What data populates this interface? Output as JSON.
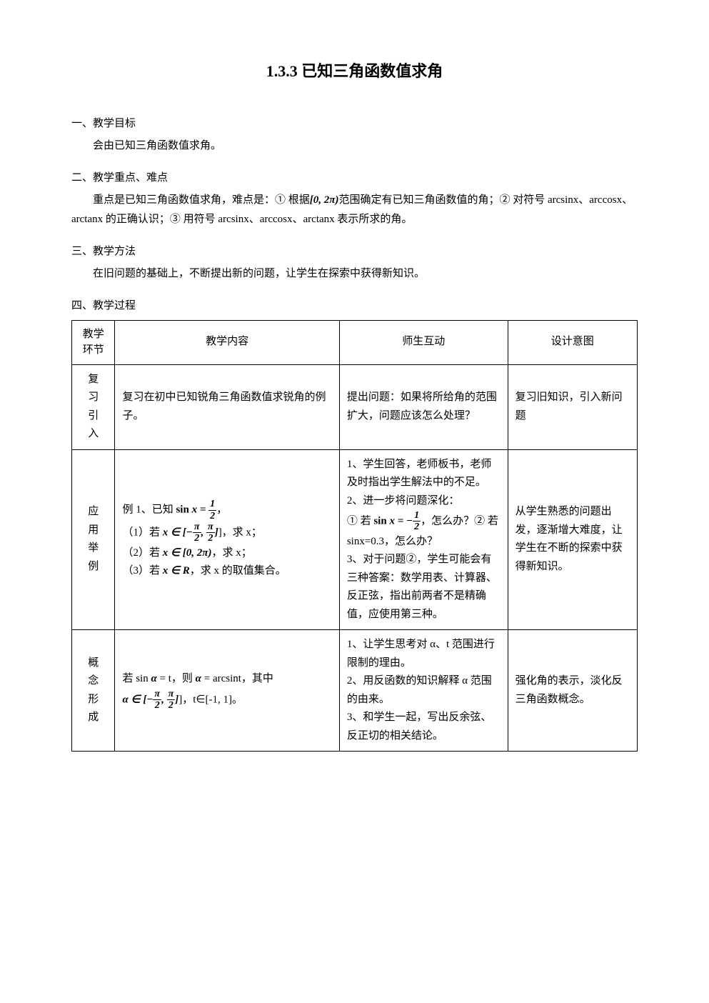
{
  "title": "1.3.3 已知三角函数值求角",
  "sections": {
    "objective": {
      "heading": "一、教学目标",
      "body": "会由已知三角函数值求角。"
    },
    "keypoints": {
      "heading": "二、教学重点、难点",
      "body_prefix": "重点是已知三角函数值求角，难点是：① 根据",
      "body_interval": "[0, 2π)",
      "body_mid": "范围确定有已知三角函数值的角；② 对符号 arcsinx、arccosx、arctanx 的正确认识；③ 用符号 arcsinx、arccosx、arctanx 表示所求的角。"
    },
    "method": {
      "heading": "三、教学方法",
      "body": "在旧问题的基础上，不断提出新的问题，让学生在探索中获得新知识。"
    },
    "process": {
      "heading": "四、教学过程"
    }
  },
  "table": {
    "headers": {
      "phase": "教学环节",
      "content": "教学内容",
      "interact": "师生互动",
      "intent": "设计意图"
    },
    "rows": [
      {
        "phase": [
          "复",
          "习",
          "引",
          "入"
        ],
        "content": "复习在初中已知锐角三角函数值求锐角的例子。",
        "interact": "提出问题：如果将所给角的范围扩大，问题应该怎么处理？",
        "intent": "复习旧知识，引入新问题"
      },
      {
        "phase": [
          "应",
          "用",
          "举",
          "例"
        ],
        "content_lines": {
          "l1_pre": "例 1、已知",
          "l1_sin": "sin x =",
          "l1_num": "1",
          "l1_den": "2",
          "l1_post": "，",
          "l2_pre": "（1）若",
          "l2_x": "x ∈ [−",
          "l2_num1": "π",
          "l2_den1": "2",
          "l2_mid": ", ",
          "l2_num2": "π",
          "l2_den2": "2",
          "l2_post": "]，求 x；",
          "l3_pre": "（2）若",
          "l3_x": "x ∈ [0, 2π)",
          "l3_post": "，求 x；",
          "l4_pre": "（3）若",
          "l4_x": "x ∈ R",
          "l4_post": "，求 x 的取值集合。"
        },
        "interact_lines": {
          "p1": "1、学生回答，老师板书，老师及时指出学生解法中的不足。",
          "p2": "2、进一步将问题深化：",
          "p2a_pre": "① 若",
          "p2a_sin": "sin x = −",
          "p2a_num": "1",
          "p2a_den": "2",
          "p2a_post": "，怎么办？② 若 sinx=0.3，怎么办？",
          "p3": "3、对于问题②，学生可能会有三种答案：数学用表、计算器、反正弦，指出前两者不是精确值，应使用第三种。"
        },
        "intent": "从学生熟悉的问题出发，逐渐增大难度，让学生在不断的探索中获得新知识。"
      },
      {
        "phase": [
          "概",
          "念",
          "形",
          "成"
        ],
        "content_lines": {
          "l1": "若 sin α = t，则 α = arcsint，其中",
          "l2_pre": "α ∈ [−",
          "l2_num1": "π",
          "l2_den1": "2",
          "l2_mid": ", ",
          "l2_num2": "π",
          "l2_den2": "2",
          "l2_post": "]，t∈[-1, 1]。"
        },
        "interact": "1、让学生思考对 α、t 范围进行限制的理由。\n2、用反函数的知识解释 α 范围的由来。\n3、和学生一起，写出反余弦、反正切的相关结论。",
        "intent": "强化角的表示，淡化反三角函数概念。"
      }
    ]
  }
}
